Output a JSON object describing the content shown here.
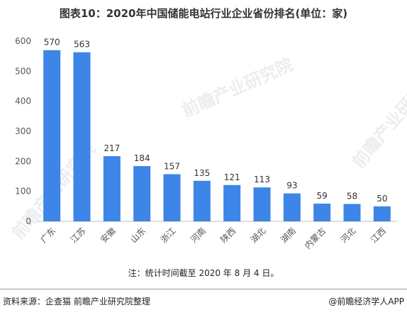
{
  "title": "图表10：2020年中国储能电站行业企业省份排名(单位：家)",
  "footnote": "注：统计时间截至 2020 年 8 月 4 日。",
  "source": "资料来源：企查猫 前瞻产业研究院整理",
  "credit": "@前瞻经济学人APP",
  "watermark": "前瞻产业研究院",
  "colors": {
    "bar": "#3d85e6",
    "axis": "#bfbfbf",
    "text": "#555555"
  },
  "chart_data": {
    "type": "bar",
    "categories": [
      "广东",
      "江苏",
      "安徽",
      "山东",
      "浙江",
      "河南",
      "陕西",
      "湖北",
      "湖南",
      "内蒙古",
      "河北",
      "江西"
    ],
    "values": [
      570,
      563,
      217,
      184,
      157,
      135,
      121,
      113,
      93,
      59,
      58,
      50
    ],
    "title": "图表10：2020年中国储能电站行业企业省份排名(单位：家)",
    "xlabel": "",
    "ylabel": "",
    "ylim": [
      0,
      600
    ],
    "yticks": [
      0,
      100,
      200,
      300,
      400,
      500,
      600
    ],
    "grid": false,
    "data_labels": true,
    "legend": "none"
  }
}
